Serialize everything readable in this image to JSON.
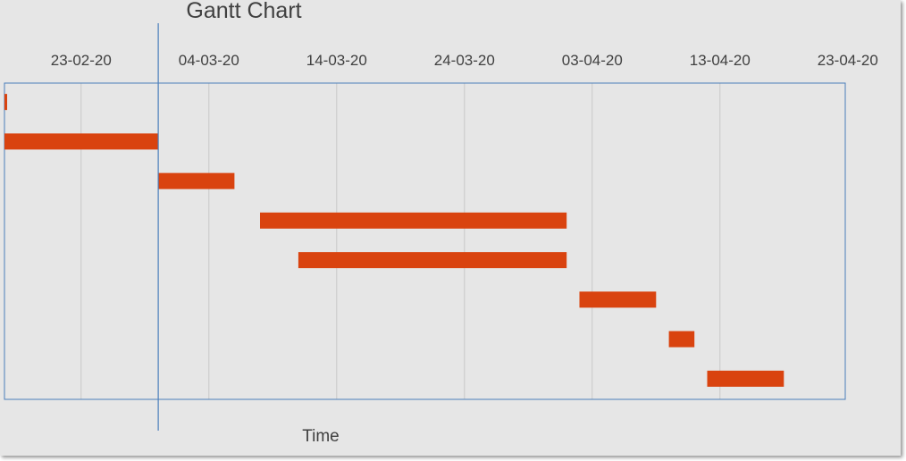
{
  "chart_data": {
    "type": "gantt",
    "title": "Gantt Chart",
    "xlabel": "Time",
    "x_axis_position": "top",
    "x_ticks": [
      "23-02-20",
      "04-03-20",
      "14-03-20",
      "24-03-20",
      "03-04-20",
      "13-04-20",
      "23-04-20"
    ],
    "xlim": [
      "2020-02-17",
      "2020-04-23"
    ],
    "grid": true,
    "legend": "none",
    "marker_line_date": "2020-02-29",
    "tasks": [
      {
        "start": "2020-02-17",
        "end": "2020-02-17"
      },
      {
        "start": "2020-02-17",
        "end": "2020-02-29"
      },
      {
        "start": "2020-02-29",
        "end": "2020-03-06"
      },
      {
        "start": "2020-03-08",
        "end": "2020-04-01"
      },
      {
        "start": "2020-03-11",
        "end": "2020-04-01"
      },
      {
        "start": "2020-04-02",
        "end": "2020-04-08"
      },
      {
        "start": "2020-04-09",
        "end": "2020-04-11"
      },
      {
        "start": "2020-04-12",
        "end": "2020-04-18"
      }
    ],
    "colors": {
      "bar": "#d9430f",
      "plot_border": "#4a7ebb",
      "marker_line": "#4a7ebb",
      "gridline": "#c8c8c8",
      "background": "#e6e6e6",
      "text": "#404040"
    }
  }
}
